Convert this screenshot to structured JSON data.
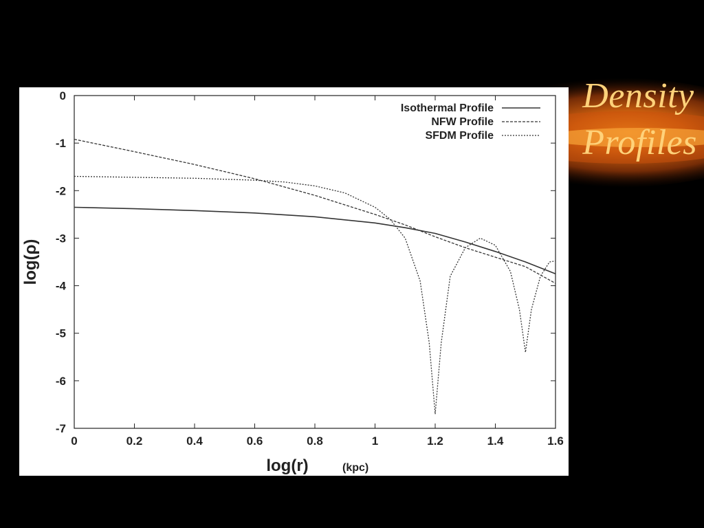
{
  "slide": {
    "title_line1": "Density",
    "title_line2": "Profiles",
    "title_color": "#ffd27a",
    "background_color": "#000000"
  },
  "chart_data": {
    "type": "line",
    "title": "",
    "xlabel": "log(r)",
    "xlabel_unit": "(kpc)",
    "ylabel": "log(ρ)",
    "xlim": [
      0,
      1.6
    ],
    "ylim": [
      -7,
      0
    ],
    "xticks": [
      "0",
      "0.2",
      "0.4",
      "0.6",
      "0.8",
      "1",
      "1.2",
      "1.4",
      "1.6"
    ],
    "yticks": [
      "0",
      "-1",
      "-2",
      "-3",
      "-4",
      "-5",
      "-6",
      "-7"
    ],
    "grid": false,
    "legend_position": "top-right",
    "series": [
      {
        "name": "Isothermal Profile",
        "style": "solid",
        "x": [
          0,
          0.2,
          0.4,
          0.6,
          0.8,
          1.0,
          1.1,
          1.2,
          1.3,
          1.4,
          1.5,
          1.6
        ],
        "y": [
          -2.35,
          -2.38,
          -2.42,
          -2.47,
          -2.55,
          -2.68,
          -2.78,
          -2.9,
          -3.08,
          -3.28,
          -3.5,
          -3.75
        ]
      },
      {
        "name": "NFW Profile",
        "style": "dashed",
        "x": [
          0,
          0.2,
          0.4,
          0.6,
          0.8,
          1.0,
          1.1,
          1.2,
          1.3,
          1.4,
          1.5,
          1.6
        ],
        "y": [
          -0.92,
          -1.18,
          -1.45,
          -1.75,
          -2.1,
          -2.5,
          -2.72,
          -2.97,
          -3.2,
          -3.4,
          -3.6,
          -3.95
        ]
      },
      {
        "name": "SFDM Profile",
        "style": "dotted",
        "x": [
          0,
          0.2,
          0.4,
          0.6,
          0.7,
          0.8,
          0.9,
          1.0,
          1.05,
          1.1,
          1.15,
          1.18,
          1.2,
          1.22,
          1.25,
          1.3,
          1.35,
          1.4,
          1.45,
          1.48,
          1.5,
          1.52,
          1.55,
          1.58,
          1.6
        ],
        "y": [
          -1.7,
          -1.72,
          -1.74,
          -1.78,
          -1.82,
          -1.9,
          -2.05,
          -2.35,
          -2.6,
          -3.0,
          -3.9,
          -5.2,
          -6.7,
          -5.2,
          -3.8,
          -3.2,
          -3.0,
          -3.15,
          -3.7,
          -4.5,
          -5.4,
          -4.5,
          -3.8,
          -3.5,
          -3.48
        ]
      }
    ]
  }
}
